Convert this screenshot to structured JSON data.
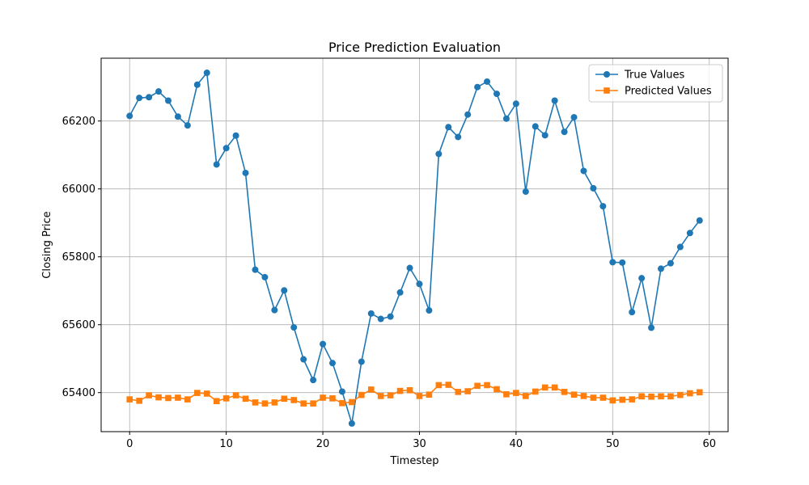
{
  "chart_data": {
    "type": "line",
    "title": "Price Prediction Evaluation",
    "xlabel": "Timestep",
    "ylabel": "Closing Price",
    "xlim": [
      -2.95,
      61.95
    ],
    "ylim": [
      65285,
      66385
    ],
    "xticks": [
      0,
      10,
      20,
      30,
      40,
      50,
      60
    ],
    "yticks": [
      65400,
      65600,
      65800,
      66000,
      66200
    ],
    "grid": true,
    "legend_position": "top-right",
    "series": [
      {
        "name": "True Values",
        "color": "#1f77b4",
        "marker": "circle",
        "x": [
          0,
          1,
          2,
          3,
          4,
          5,
          6,
          7,
          8,
          9,
          10,
          11,
          12,
          13,
          14,
          15,
          16,
          17,
          18,
          19,
          20,
          21,
          22,
          23,
          24,
          25,
          26,
          27,
          28,
          29,
          30,
          31,
          32,
          33,
          34,
          35,
          36,
          37,
          38,
          39,
          40,
          41,
          42,
          43,
          44,
          45,
          46,
          47,
          48,
          49,
          50,
          51,
          52,
          53,
          54,
          55,
          56,
          57,
          58,
          59
        ],
        "values": [
          66215,
          66268,
          66270,
          66287,
          66260,
          66213,
          66187,
          66307,
          66342,
          66072,
          66120,
          66157,
          66047,
          65762,
          65740,
          65643,
          65701,
          65592,
          65498,
          65437,
          65543,
          65487,
          65403,
          65309,
          65491,
          65633,
          65617,
          65624,
          65695,
          65767,
          65720,
          65642,
          66103,
          66182,
          66153,
          66219,
          66300,
          66316,
          66280,
          66207,
          66251,
          65992,
          66184,
          66158,
          66260,
          66168,
          66211,
          66053,
          66002,
          65949,
          65784,
          65783,
          65637,
          65737,
          65591,
          65765,
          65781,
          65829,
          65870,
          65907
        ]
      },
      {
        "name": "Predicted Values",
        "color": "#ff7f0e",
        "marker": "square",
        "x": [
          0,
          1,
          2,
          3,
          4,
          5,
          6,
          7,
          8,
          9,
          10,
          11,
          12,
          13,
          14,
          15,
          16,
          17,
          18,
          19,
          20,
          21,
          22,
          23,
          24,
          25,
          26,
          27,
          28,
          29,
          30,
          31,
          32,
          33,
          34,
          35,
          36,
          37,
          38,
          39,
          40,
          41,
          42,
          43,
          44,
          45,
          46,
          47,
          48,
          49,
          50,
          51,
          52,
          53,
          54,
          55,
          56,
          57,
          58,
          59
        ],
        "values": [
          65380,
          65376,
          65392,
          65386,
          65384,
          65385,
          65380,
          65399,
          65397,
          65375,
          65383,
          65392,
          65382,
          65371,
          65368,
          65371,
          65382,
          65378,
          65368,
          65368,
          65385,
          65383,
          65369,
          65372,
          65393,
          65409,
          65390,
          65392,
          65405,
          65407,
          65390,
          65394,
          65422,
          65423,
          65402,
          65404,
          65420,
          65422,
          65410,
          65395,
          65399,
          65390,
          65403,
          65415,
          65415,
          65402,
          65394,
          65390,
          65385,
          65385,
          65377,
          65379,
          65380,
          65389,
          65388,
          65389,
          65389,
          65393,
          65398,
          65401
        ]
      }
    ]
  }
}
